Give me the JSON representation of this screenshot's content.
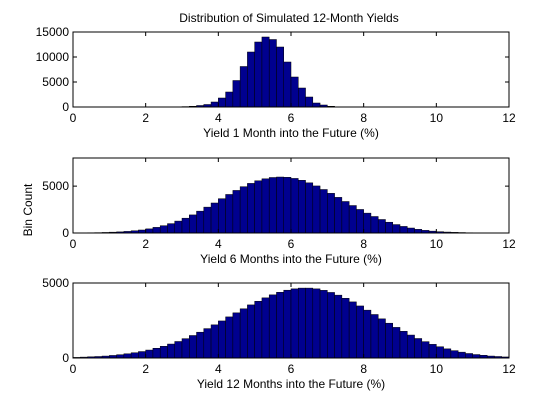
{
  "figure": {
    "title": "Distribution of Simulated 12-Month Yields",
    "shared_ylabel": "Bin Count"
  },
  "colors": {
    "bar_fill": "#00008F",
    "bar_edge": "#000000",
    "axes": "#000000",
    "background": "#FFFFFF"
  },
  "chart_data": [
    {
      "type": "bar",
      "title": "Distribution of Simulated 12-Month Yields",
      "xlabel": "Yield 1 Month into the Future (%)",
      "ylabel": "",
      "xlim": [
        0,
        12
      ],
      "ylim": [
        0,
        15000
      ],
      "xticks": [
        0,
        2,
        4,
        6,
        8,
        10,
        12
      ],
      "yticks": [
        0,
        5000,
        10000,
        15000
      ],
      "grid": false,
      "legend": "none",
      "bin_width": 0.2,
      "bin_centers": [
        2.7,
        2.9,
        3.1,
        3.3,
        3.5,
        3.7,
        3.9,
        4.1,
        4.3,
        4.5,
        4.7,
        4.9,
        5.1,
        5.3,
        5.5,
        5.7,
        5.9,
        6.1,
        6.3,
        6.5,
        6.7,
        6.9,
        7.1,
        7.3
      ],
      "values": [
        20,
        40,
        80,
        150,
        300,
        500,
        1000,
        1800,
        3000,
        5300,
        8100,
        11000,
        13000,
        14000,
        13500,
        12000,
        9000,
        6000,
        3800,
        2000,
        800,
        400,
        150,
        50
      ]
    },
    {
      "type": "bar",
      "title": "",
      "xlabel": "Yield 6 Months into the Future (%)",
      "ylabel": "Bin Count",
      "xlim": [
        0,
        12
      ],
      "ylim": [
        0,
        8000
      ],
      "xticks": [
        0,
        2,
        4,
        6,
        8,
        10,
        12
      ],
      "yticks": [
        0,
        5000
      ],
      "grid": false,
      "legend": "none",
      "bin_width": 0.2,
      "bin_centers": [
        0.3,
        0.5,
        0.7,
        0.9,
        1.1,
        1.3,
        1.5,
        1.7,
        1.9,
        2.1,
        2.3,
        2.5,
        2.7,
        2.9,
        3.1,
        3.3,
        3.5,
        3.7,
        3.9,
        4.1,
        4.3,
        4.5,
        4.7,
        4.9,
        5.1,
        5.3,
        5.5,
        5.7,
        5.9,
        6.1,
        6.3,
        6.5,
        6.7,
        6.9,
        7.1,
        7.3,
        7.5,
        7.7,
        7.9,
        8.1,
        8.3,
        8.5,
        8.7,
        8.9,
        9.1,
        9.3,
        9.5,
        9.7,
        9.9,
        10.1,
        10.3,
        10.5,
        10.7,
        10.9,
        11.1
      ],
      "values": [
        20,
        30,
        40,
        60,
        90,
        120,
        170,
        240,
        320,
        440,
        600,
        780,
        1000,
        1270,
        1580,
        1930,
        2330,
        2760,
        3200,
        3660,
        4110,
        4540,
        4940,
        5290,
        5570,
        5780,
        5920,
        5970,
        5940,
        5820,
        5620,
        5350,
        5020,
        4640,
        4230,
        3800,
        3360,
        2930,
        2510,
        2120,
        1760,
        1440,
        1150,
        900,
        700,
        530,
        390,
        280,
        200,
        140,
        100,
        70,
        50,
        30,
        20
      ]
    },
    {
      "type": "bar",
      "title": "",
      "xlabel": "Yield 12 Months into the Future (%)",
      "ylabel": "",
      "xlim": [
        0,
        12
      ],
      "ylim": [
        0,
        5000
      ],
      "xticks": [
        0,
        2,
        4,
        6,
        8,
        10,
        12
      ],
      "yticks": [
        0,
        5000
      ],
      "grid": false,
      "legend": "none",
      "bin_width": 0.2,
      "bin_centers": [
        0.1,
        0.3,
        0.5,
        0.7,
        0.9,
        1.1,
        1.3,
        1.5,
        1.7,
        1.9,
        2.1,
        2.3,
        2.5,
        2.7,
        2.9,
        3.1,
        3.3,
        3.5,
        3.7,
        3.9,
        4.1,
        4.3,
        4.5,
        4.7,
        4.9,
        5.1,
        5.3,
        5.5,
        5.7,
        5.9,
        6.1,
        6.3,
        6.5,
        6.7,
        6.9,
        7.1,
        7.3,
        7.5,
        7.7,
        7.9,
        8.1,
        8.3,
        8.5,
        8.7,
        8.9,
        9.1,
        9.3,
        9.5,
        9.7,
        9.9,
        10.1,
        10.3,
        10.5,
        10.7,
        10.9,
        11.1,
        11.3,
        11.5,
        11.7,
        11.9
      ],
      "values": [
        40,
        60,
        80,
        100,
        130,
        170,
        220,
        280,
        350,
        430,
        530,
        650,
        780,
        930,
        1100,
        1290,
        1500,
        1720,
        1960,
        2210,
        2470,
        2740,
        3010,
        3280,
        3540,
        3780,
        4010,
        4210,
        4380,
        4520,
        4610,
        4660,
        4660,
        4610,
        4510,
        4370,
        4190,
        3980,
        3740,
        3470,
        3190,
        2900,
        2610,
        2320,
        2040,
        1780,
        1530,
        1300,
        1090,
        910,
        750,
        610,
        490,
        390,
        300,
        230,
        180,
        130,
        100,
        70
      ]
    }
  ]
}
